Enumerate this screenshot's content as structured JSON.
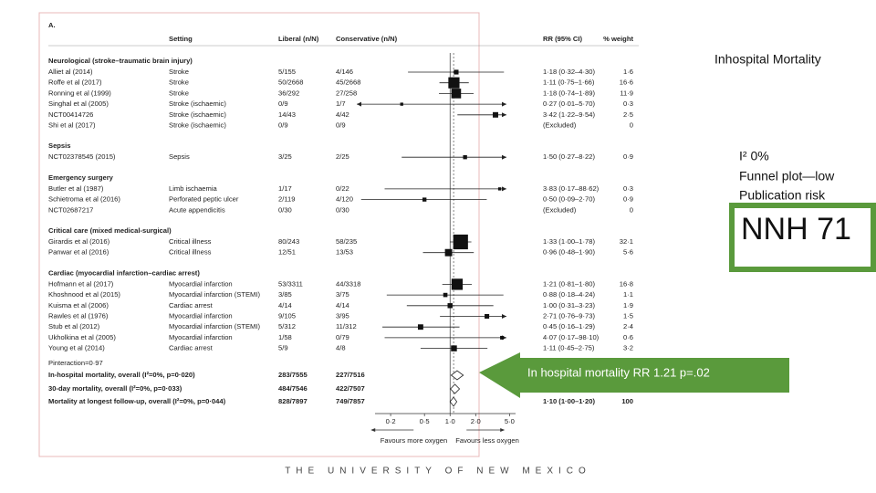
{
  "slide": {
    "title": "Inhospital Mortality",
    "notes": [
      "I² 0%",
      "Funnel plot—low",
      "Publication risk"
    ],
    "nnh": "NNH 71",
    "callout": "In hospital mortality RR  1.21 p=.02",
    "footer": "THE UNIVERSITY OF NEW MEXICO"
  },
  "forest": {
    "type": "forest",
    "panel": "A.",
    "log_scale": true,
    "headers": {
      "setting": "Setting",
      "liberal": "Liberal (n/N)",
      "conservative": "Conservative (n/N)",
      "ci": "RR (95% CI)",
      "weight": "% weight"
    },
    "groups": [
      {
        "title": "Neurological (stroke–traumatic brain injury)",
        "studies": [
          {
            "study": "Alliet al (2014)",
            "setting": "Stroke",
            "liberal": "5/155",
            "conservative": "4/146",
            "rr": 1.18,
            "lo": 0.32,
            "hi": 4.3,
            "ci_label": "1·18 (0·32–4·30)",
            "weight": {
              "value": 1.6,
              "label": "1·6"
            }
          },
          {
            "study": "Roffe et al (2017)",
            "setting": "Stroke",
            "liberal": "50/2668",
            "conservative": "45/2668",
            "rr": 1.11,
            "lo": 0.75,
            "hi": 1.66,
            "ci_label": "1·11 (0·75–1·66)",
            "weight": {
              "value": 16.6,
              "label": "16·6"
            }
          },
          {
            "study": "Ronning et al (1999)",
            "setting": "Stroke",
            "liberal": "36/292",
            "conservative": "27/258",
            "rr": 1.18,
            "lo": 0.74,
            "hi": 1.89,
            "ci_label": "1·18 (0·74–1·89)",
            "weight": {
              "value": 11.9,
              "label": "11·9"
            }
          },
          {
            "study": "Singhal et al (2005)",
            "setting": "Stroke (ischaemic)",
            "liberal": "0/9",
            "conservative": "1/7",
            "rr": 0.27,
            "lo": 0.01,
            "hi": 5.7,
            "ci_label": "0·27 (0·01–5·70)",
            "weight": {
              "value": 0.3,
              "label": "0·3"
            }
          },
          {
            "study": "NCT00414726",
            "setting": "Stroke (ischaemic)",
            "liberal": "14/43",
            "conservative": "4/42",
            "rr": 3.42,
            "lo": 1.22,
            "hi": 9.54,
            "ci_label": "3·42 (1·22–9·54)",
            "weight": {
              "value": 2.5,
              "label": "2·5"
            }
          },
          {
            "study": "Shi et al (2017)",
            "setting": "Stroke (ischaemic)",
            "liberal": "0/9",
            "conservative": "0/9",
            "rr": null,
            "lo": null,
            "hi": null,
            "ci_label": "(Excluded)",
            "weight": 0
          }
        ]
      },
      {
        "title": "Sepsis",
        "studies": [
          {
            "study": "NCT02378545 (2015)",
            "setting": "Sepsis",
            "liberal": "3/25",
            "conservative": "2/25",
            "rr": 1.5,
            "lo": 0.27,
            "hi": 8.22,
            "ci_label": "1·50 (0·27–8·22)",
            "weight": {
              "value": 0.9,
              "label": "0·9"
            }
          }
        ]
      },
      {
        "title": "Emergency surgery",
        "studies": [
          {
            "study": "Butler et al (1987)",
            "setting": "Limb ischaemia",
            "liberal": "1/17",
            "conservative": "0/22",
            "rr": 3.83,
            "lo": 0.17,
            "hi": 88.62,
            "ci_label": "3·83 (0·17–88·62)",
            "weight": {
              "value": 0.3,
              "label": "0·3"
            }
          },
          {
            "study": "Schietroma et al (2016)",
            "setting": "Perforated peptic ulcer",
            "liberal": "2/119",
            "conservative": "4/120",
            "rr": 0.5,
            "lo": 0.09,
            "hi": 2.7,
            "ci_label": "0·50 (0·09–2·70)",
            "weight": {
              "value": 0.9,
              "label": "0·9"
            }
          },
          {
            "study": "NCT02687217",
            "setting": "Acute appendicitis",
            "liberal": "0/30",
            "conservative": "0/30",
            "rr": null,
            "lo": null,
            "hi": null,
            "ci_label": "(Excluded)",
            "weight": 0
          }
        ]
      },
      {
        "title": "Critical care (mixed medical-surgical)",
        "studies": [
          {
            "study": "Girardis et al (2016)",
            "setting": "Critical illness",
            "liberal": "80/243",
            "conservative": "58/235",
            "rr": 1.33,
            "lo": 1.0,
            "hi": 1.78,
            "ci_label": "1·33 (1·00–1·78)",
            "weight": {
              "value": 32.1,
              "label": "32·1"
            }
          },
          {
            "study": "Panwar et al (2016)",
            "setting": "Critical illness",
            "liberal": "12/51",
            "conservative": "13/53",
            "rr": 0.96,
            "lo": 0.48,
            "hi": 1.9,
            "ci_label": "0·96 (0·48–1·90)",
            "weight": {
              "value": 5.6,
              "label": "5·6"
            }
          }
        ]
      },
      {
        "title": "Cardiac (myocardial infarction–cardiac arrest)",
        "studies": [
          {
            "study": "Hofmann et al (2017)",
            "setting": "Myocardial infarction",
            "liberal": "53/3311",
            "conservative": "44/3318",
            "rr": 1.21,
            "lo": 0.81,
            "hi": 1.8,
            "ci_label": "1·21 (0·81–1·80)",
            "weight": {
              "value": 16.8,
              "label": "16·8"
            }
          },
          {
            "study": "Khoshnood et al (2015)",
            "setting": "Myocardial infarction (STEMI)",
            "liberal": "3/85",
            "conservative": "3/75",
            "rr": 0.88,
            "lo": 0.18,
            "hi": 4.24,
            "ci_label": "0·88 (0·18–4·24)",
            "weight": {
              "value": 1.1,
              "label": "1·1"
            }
          },
          {
            "study": "Kuisma et al (2006)",
            "setting": "Cardiac arrest",
            "liberal": "4/14",
            "conservative": "4/14",
            "rr": 1.0,
            "lo": 0.31,
            "hi": 3.23,
            "ci_label": "1·00 (0·31–3·23)",
            "weight": {
              "value": 1.9,
              "label": "1·9"
            }
          },
          {
            "study": "Rawles et al (1976)",
            "setting": "Myocardial infarction",
            "liberal": "9/105",
            "conservative": "3/95",
            "rr": 2.71,
            "lo": 0.76,
            "hi": 9.73,
            "ci_label": "2·71 (0·76–9·73)",
            "weight": {
              "value": 1.5,
              "label": "1·5"
            }
          },
          {
            "study": "Stub et al (2012)",
            "setting": "Myocardial infarction (STEMI)",
            "liberal": "5/312",
            "conservative": "11/312",
            "rr": 0.45,
            "lo": 0.16,
            "hi": 1.29,
            "ci_label": "0·45 (0·16–1·29)",
            "weight": {
              "value": 2.4,
              "label": "2·4"
            }
          },
          {
            "study": "Ukholkina et al (2005)",
            "setting": "Myocardial infarction",
            "liberal": "1/58",
            "conservative": "0/79",
            "rr": 4.07,
            "lo": 0.17,
            "hi": 98.1,
            "ci_label": "4·07 (0·17–98·10)",
            "weight": {
              "value": 0.6,
              "label": "0·6"
            }
          },
          {
            "study": "Young et al (2014)",
            "setting": "Cardiac arrest",
            "liberal": "5/9",
            "conservative": "4/8",
            "rr": 1.11,
            "lo": 0.45,
            "hi": 2.75,
            "ci_label": "1·11 (0·45–2·75)",
            "weight": {
              "value": 3.2,
              "label": "3·2"
            }
          }
        ]
      }
    ],
    "p_interaction": "Pinteraction=0·97",
    "pooled": [
      {
        "label": "In-hospital mortality, overall (I²=0%, p=0·020)",
        "liberal": "283/7555",
        "conservative": "227/7516",
        "rr": 1.21,
        "lo": 1.03,
        "hi": 1.43
      },
      {
        "label": "30-day mortality, overall (I²=0%, p=0·033)",
        "liberal": "484/7546",
        "conservative": "422/7507",
        "rr": 1.14,
        "lo": 1.01,
        "hi": 1.29
      },
      {
        "label": "Mortality at longest follow-up, overall (I²=0%, p=0·044)",
        "liberal": "828/7897",
        "conservative": "749/7857",
        "rr": 1.1,
        "lo": 1.0,
        "hi": 1.2,
        "ci_label": "1·10 (1·00–1·20)",
        "weight": 100
      }
    ],
    "xlim": [
      0.08,
      4.6
    ],
    "xticks": [
      {
        "value": 0.2,
        "label": "0·2"
      },
      {
        "value": 0.5,
        "label": "0·5"
      },
      {
        "value": 1.0,
        "label": "1·0"
      },
      {
        "value": 2.0,
        "label": "2·0"
      },
      {
        "value": 5.0,
        "label": "5·0"
      }
    ],
    "favours": [
      "Favours more oxygen",
      "Favours less oxygen"
    ]
  }
}
